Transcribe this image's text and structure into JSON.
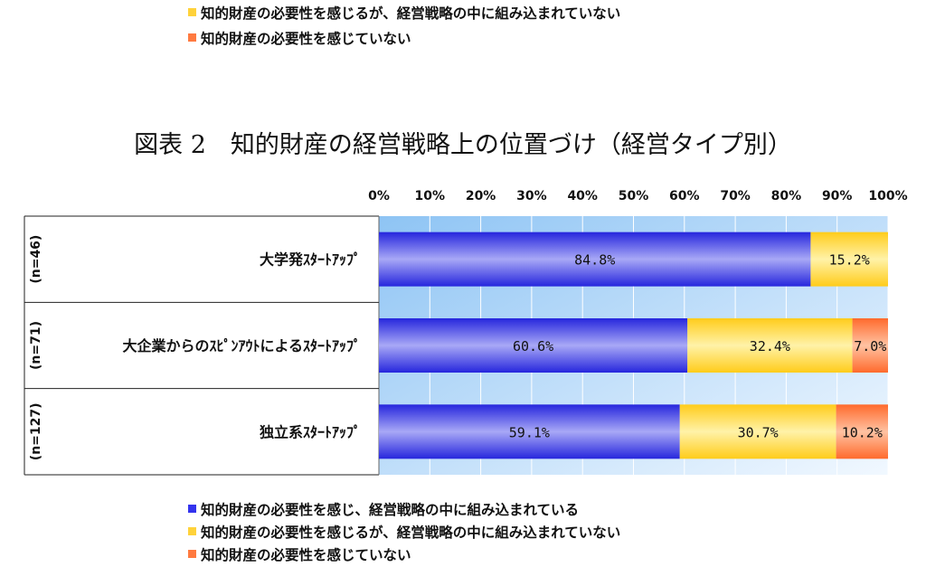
{
  "legend_top": [
    {
      "label": "知的財産の必要性を感じるが、経営戦略の中に組み込まれていない",
      "color": "#FFD23A"
    },
    {
      "label": "知的財産の必要性を感じていない",
      "color": "#FF7A40"
    }
  ],
  "title": "図表 2　知的財産の経営戦略上の位置づけ（経営タイプ別）",
  "legend_bottom": [
    {
      "label": "知的財産の必要性を感じ、経営戦略の中に組み込まれている",
      "color": "#3333EE"
    },
    {
      "label": "知的財産の必要性を感じるが、経営戦略の中に組み込まれていない",
      "color": "#FFD23A"
    },
    {
      "label": "知的財産の必要性を感じていない",
      "color": "#FF7A40"
    }
  ],
  "chart_data": {
    "type": "bar",
    "orientation": "horizontal",
    "stacked": true,
    "title": "図表 2　知的財産の経営戦略上の位置づけ（経営タイプ別）",
    "x_ticks": [
      "0%",
      "10%",
      "20%",
      "30%",
      "40%",
      "50%",
      "60%",
      "70%",
      "80%",
      "90%",
      "100%"
    ],
    "xlim": [
      0,
      100
    ],
    "categories": [
      "大学発ｽﾀｰﾄｱｯﾌﾟ",
      "大企業からのｽﾋﾟﾝｱｳﾄによるｽﾀｰﾄｱｯﾌﾟ",
      "独立系ｽﾀｰﾄｱｯﾌﾟ"
    ],
    "sample_sizes": [
      "(n=46)",
      "(n=71)",
      "(n=127)"
    ],
    "series": [
      {
        "name": "知的財産の必要性を感じ、経営戦略の中に組み込まれている",
        "color": "#3333EE",
        "values": [
          84.8,
          60.6,
          59.1
        ],
        "labels": [
          "84.8%",
          "60.6%",
          "59.1%"
        ]
      },
      {
        "name": "知的財産の必要性を感じるが、経営戦略の中に組み込まれていない",
        "color": "#FFD23A",
        "values": [
          15.2,
          32.4,
          30.7
        ],
        "labels": [
          "15.2%",
          "32.4%",
          "30.7%"
        ]
      },
      {
        "name": "知的財産の必要性を感じていない",
        "color": "#FF7A40",
        "values": [
          0,
          7.0,
          10.2
        ],
        "labels": [
          "",
          "7.0%",
          "10.2%"
        ]
      }
    ],
    "grid": true,
    "legend_position": "bottom"
  }
}
